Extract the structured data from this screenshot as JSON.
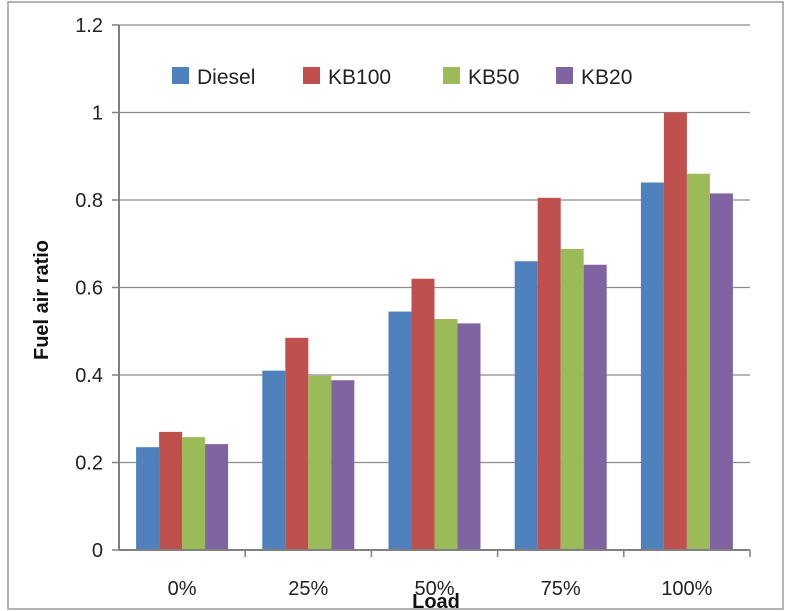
{
  "chart_data": {
    "type": "bar",
    "categories": [
      "0%",
      "25%",
      "50%",
      "75%",
      "100%"
    ],
    "series": [
      {
        "name": "Diesel",
        "color": "#4F81BD",
        "values": [
          0.235,
          0.41,
          0.545,
          0.66,
          0.84
        ]
      },
      {
        "name": "KB100",
        "color": "#C0504D",
        "values": [
          0.27,
          0.485,
          0.62,
          0.805,
          1.0
        ]
      },
      {
        "name": "KB50",
        "color": "#9BBB59",
        "values": [
          0.258,
          0.398,
          0.528,
          0.688,
          0.86
        ]
      },
      {
        "name": "KB20",
        "color": "#8064A2",
        "values": [
          0.242,
          0.388,
          0.518,
          0.652,
          0.815
        ]
      }
    ],
    "xlabel": "Load",
    "ylabel": "Fuel air ratio",
    "ylim": [
      0,
      1.2
    ],
    "yticks": [
      "0",
      "0.2",
      "0.4",
      "0.6",
      "0.8",
      "1",
      "1.2"
    ],
    "grid": true,
    "legend_position": "top"
  }
}
